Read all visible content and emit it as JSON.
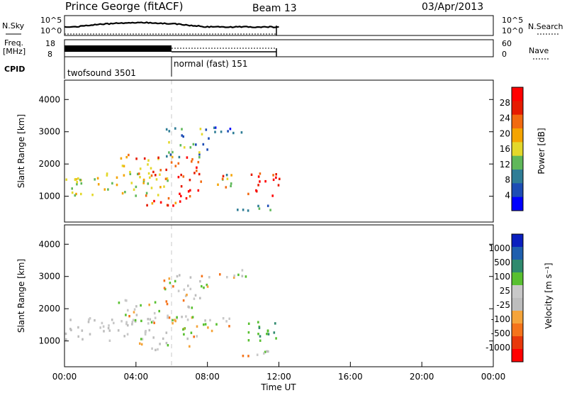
{
  "header": {
    "station": "Prince George (fitACF)",
    "beam": "Beam 13",
    "date": "03/Apr/2013"
  },
  "noise_panel": {
    "left_label": "N.Sky",
    "right_label": "N.Search",
    "left_ticks": [
      "10^5",
      "10^0"
    ],
    "right_ticks": [
      "10^5",
      "10^0"
    ]
  },
  "freq_panel": {
    "left_label": "Freq.",
    "left_unit": "[MHz]",
    "left_ticks": [
      "18",
      "8"
    ],
    "right_label": "Nave",
    "right_ticks": [
      "60",
      "0"
    ]
  },
  "cpid": {
    "label": "CPID",
    "segments": [
      {
        "name": "twofsound 3501",
        "start_hour": 0,
        "end_hour": 6
      },
      {
        "name": "normal (fast) 151",
        "start_hour": 6,
        "end_hour": 12
      }
    ]
  },
  "colors": {
    "power": [
      "#0000ff",
      "#1d4db5",
      "#2f7d96",
      "#5fb85a",
      "#e3d82a",
      "#f5a400",
      "#f26a10",
      "#e61b00",
      "#ff0000"
    ],
    "velocity": [
      "#ff0000",
      "#e8380a",
      "#f5731a",
      "#f5a43a",
      "#bdbdbd",
      "#c8c8c8",
      "#58c030",
      "#2f8a6e",
      "#1f5fae",
      "#0a1fbf"
    ]
  },
  "chart_data": [
    {
      "type": "heatmap",
      "name": "power",
      "ylabel": "Slant Range [km]",
      "yticks": [
        1000,
        2000,
        3000,
        4000
      ],
      "ylim": [
        200,
        4600
      ],
      "xlim": [
        0,
        24
      ],
      "colorbar_label": "Power [dB]",
      "colorbar_ticks": [
        4,
        8,
        12,
        16,
        20,
        24,
        28
      ]
    },
    {
      "type": "heatmap",
      "name": "velocity",
      "ylabel": "Slant Range [km]",
      "yticks": [
        1000,
        2000,
        3000,
        4000
      ],
      "ylim": [
        200,
        4600
      ],
      "xlim": [
        0,
        24
      ],
      "xlabel": "Time UT",
      "xticks": [
        "00:00",
        "04:00",
        "08:00",
        "12:00",
        "16:00",
        "20:00",
        "00:00"
      ],
      "colorbar_label": "Velocity [m s⁻¹]",
      "colorbar_ticks": [
        "1000",
        "500",
        "100",
        "25",
        "-25",
        "-100",
        "-500",
        "-1000"
      ]
    }
  ]
}
